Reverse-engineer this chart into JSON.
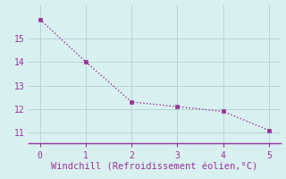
{
  "x": [
    0,
    1,
    2,
    3,
    4,
    5
  ],
  "y": [
    15.8,
    14.0,
    12.3,
    12.1,
    11.9,
    11.1
  ],
  "line_color": "#993399",
  "marker": "s",
  "marker_size": 2.5,
  "xlabel": "Windchill (Refroidissement éolien,°C)",
  "xlabel_color": "#993399",
  "xlabel_fontsize": 7.5,
  "background_color": "#d8f0f0",
  "grid_color": "#b8d4d4",
  "tick_label_color": "#993399",
  "tick_fontsize": 7,
  "xlim": [
    -0.25,
    5.25
  ],
  "ylim": [
    10.55,
    16.4
  ],
  "yticks": [
    11,
    12,
    13,
    14,
    15
  ],
  "xticks": [
    0,
    1,
    2,
    3,
    4,
    5
  ],
  "spine_color": "#993399"
}
